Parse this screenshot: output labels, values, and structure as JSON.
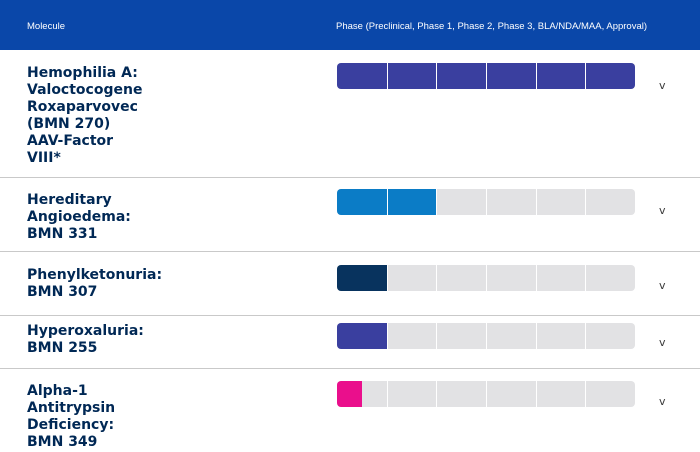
{
  "header": {
    "molecule_label": "Molecule",
    "phase_label": "Phase (Preclinical, Phase 1, Phase 2, Phase 3, BLA/NDA/MAA, Approval)"
  },
  "phase_count": 6,
  "rows": [
    {
      "name": "Hemophilia A:\nValoctocogene\nRoxaparvovec\n(BMN 270)\nAAV-Factor\nVIII*",
      "phases_filled": 6,
      "color": "#3a3f9f",
      "chevron": "v"
    },
    {
      "name": "Hereditary\nAngioedema:\nBMN 331",
      "phases_filled": 2,
      "color": "#0b7cc6",
      "chevron": "v"
    },
    {
      "name": "Phenylketonuria:\nBMN 307",
      "phases_filled": 1,
      "color": "#08335e",
      "chevron": "v"
    },
    {
      "name": "Hyperoxaluria:\nBMN 255",
      "phases_filled": 1,
      "color": "#3a3f9f",
      "chevron": "v"
    },
    {
      "name": "Alpha-1\nAntitrypsin\nDeficiency:\nBMN 349",
      "phases_filled": 0.5,
      "color": "#ea0f8c",
      "chevron": "v"
    }
  ]
}
